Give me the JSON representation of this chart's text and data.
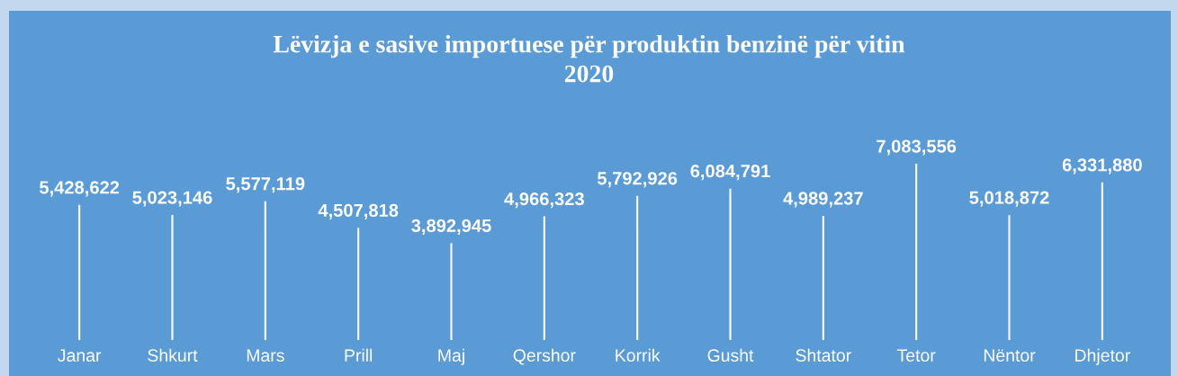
{
  "chart_data": {
    "type": "bar",
    "title": "Lëvizja e sasive importuese për produktin benzinë për vitin 2020",
    "categories": [
      "Janar",
      "Shkurt",
      "Mars",
      "Prill",
      "Maj",
      "Qershor",
      "Korrik",
      "Gusht",
      "Shtator",
      "Tetor",
      "Nëntor",
      "Dhjetor"
    ],
    "values": [
      5428622,
      5023146,
      5577119,
      4507818,
      3892945,
      4966323,
      5792926,
      6084791,
      4989237,
      7083556,
      5018872,
      6331880
    ],
    "value_labels": [
      "5,428,622",
      "5,023,146",
      "5,577,119",
      "4,507,818",
      "3,892,945",
      "4,966,323",
      "5,792,926",
      "6,084,791",
      "4,989,237",
      "7,083,556",
      "5,018,872",
      "6,331,880"
    ],
    "color": "#ffffff"
  }
}
